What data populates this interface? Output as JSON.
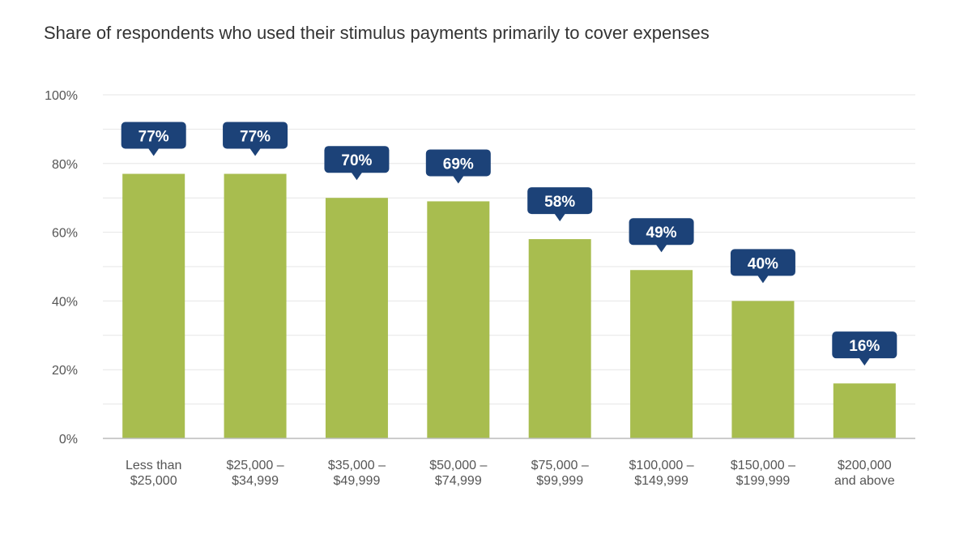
{
  "chart_data": {
    "type": "bar",
    "title": "Share of respondents who used their stimulus payments primarily to cover expenses",
    "xlabel": "",
    "ylabel": "",
    "categories": [
      [
        "Less than",
        "$25,000"
      ],
      [
        "$25,000 –",
        "$34,999"
      ],
      [
        "$35,000 –",
        "$49,999"
      ],
      [
        "$50,000 –",
        "$74,999"
      ],
      [
        "$75,000 –",
        "$99,999"
      ],
      [
        "$100,000 –",
        "$149,999"
      ],
      [
        "$150,000 –",
        "$199,999"
      ],
      [
        "$200,000",
        "and above"
      ]
    ],
    "values": [
      77,
      77,
      70,
      69,
      58,
      49,
      40,
      16
    ],
    "data_labels": [
      "77%",
      "77%",
      "70%",
      "69%",
      "58%",
      "49%",
      "40%",
      "16%"
    ],
    "ylim": [
      0,
      100
    ],
    "yticks": [
      0,
      20,
      40,
      60,
      80,
      100
    ],
    "ytick_labels": [
      "0%",
      "20%",
      "40%",
      "60%",
      "80%",
      "100%"
    ],
    "grid": true,
    "legend": "none",
    "colors": {
      "bar": "#a8bd4f",
      "label_box": "#1c4278",
      "grid": "#e6e6e6",
      "axis": "#bbbbbb"
    }
  }
}
